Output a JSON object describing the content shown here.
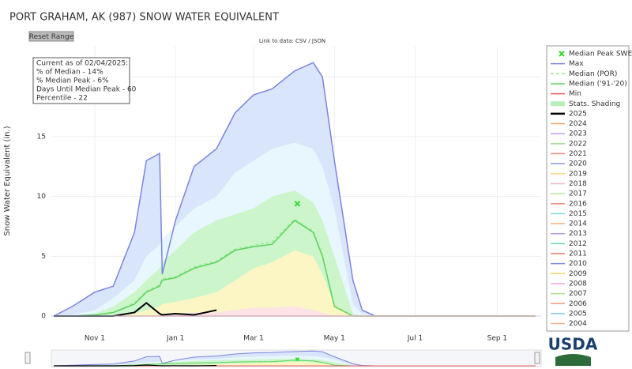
{
  "chart_data": {
    "type": "area",
    "title": "PORT GRAHAM, AK (987) SNOW WATER EQUIVALENT",
    "reset_button": "Reset Range",
    "data_link": "Link to data: CSV / JSON",
    "y_label": "Snow Water Equivalent (in.)",
    "info": [
      "Current as of 02/04/2025:",
      "% of Median - 14%",
      "% Median Peak - 6%",
      "Days Until Median Peak - 60",
      "Percentile - 22"
    ],
    "logo": "USDA",
    "grid": true,
    "x": [
      "Oct 1",
      "Oct 15",
      "Nov 1",
      "Nov 15",
      "Dec 1",
      "Dec 10",
      "Dec 20",
      "Dec 22",
      "Jan 1",
      "Jan 15",
      "Feb 1",
      "Feb 15",
      "Mar 1",
      "Mar 15",
      "Apr 1",
      "Apr 15",
      "Apr 22",
      "May 1",
      "May 15",
      "May 22",
      "Jun 1",
      "Jul 1",
      "Aug 1",
      "Sep 1",
      "Sep 30"
    ],
    "xlim": [
      "Oct 1",
      "Sep 30"
    ],
    "xticks": [
      "Nov 1",
      "Jan 1",
      "Mar 1",
      "May 1",
      "Jul 1",
      "Sep 1"
    ],
    "ylim": [
      0,
      22.6
    ],
    "yticks": [
      0,
      5,
      10,
      15,
      20
    ],
    "median_peak": {
      "name": "Median Peak SWE",
      "color": "#33dd33",
      "x": "Apr 3",
      "value": 9.4
    },
    "series": [
      {
        "name": "Max",
        "color": "#7d84e0",
        "values": [
          0,
          0.8,
          2,
          2.5,
          7,
          13,
          13.6,
          3.5,
          8,
          12.5,
          14,
          17,
          18.5,
          19,
          20.5,
          21.2,
          20,
          13,
          3,
          0.5,
          0,
          0,
          0,
          0,
          0
        ]
      },
      {
        "name": "Median (POR)",
        "color": "#9be89b",
        "dash": true,
        "values": [
          0,
          0,
          0.1,
          0.3,
          1.1,
          2.1,
          2.6,
          3.1,
          3.3,
          4.1,
          4.6,
          5.6,
          5.9,
          6.2,
          8.1,
          7.1,
          5.1,
          0.9,
          0,
          0,
          0,
          0,
          0,
          0,
          0
        ]
      },
      {
        "name": "Median ('91-'20)",
        "color": "#5ed35e",
        "values": [
          0,
          0,
          0.1,
          0.3,
          1,
          2,
          2.5,
          3,
          3.2,
          4,
          4.5,
          5.5,
          5.8,
          6,
          8,
          7,
          5,
          0.8,
          0,
          0,
          0,
          0,
          0,
          0,
          0
        ]
      },
      {
        "name": "Min",
        "color": "#f06060",
        "values": [
          0,
          0,
          0,
          0,
          0,
          0,
          0,
          0,
          0,
          0,
          0,
          0,
          0,
          0,
          0,
          0,
          0,
          0,
          0,
          0,
          0,
          0,
          0,
          0,
          0
        ]
      }
    ],
    "shading": {
      "name": "Stats. Shading",
      "color": "#b7f0b7",
      "bands": [
        {
          "color": "#d8e5fb",
          "values": [
            0,
            0.8,
            2,
            2.5,
            7,
            13,
            13.6,
            3.5,
            8,
            12.5,
            14,
            17,
            18.5,
            19,
            20.5,
            21.2,
            20,
            13,
            3,
            0.5,
            0,
            0,
            0,
            0,
            0
          ]
        },
        {
          "color": "#e8f6fd",
          "values": [
            0,
            0.1,
            0.5,
            1.5,
            3,
            5,
            6,
            6.5,
            7.5,
            9,
            10,
            12,
            13,
            14,
            14.5,
            14,
            12.5,
            9,
            1,
            0.2,
            0,
            0,
            0,
            0,
            0
          ]
        },
        {
          "color": "#ccf5cc",
          "values": [
            0,
            0,
            0.2,
            0.8,
            2,
            3,
            4,
            4.5,
            5.5,
            7,
            8,
            8.5,
            9,
            10,
            10.5,
            9.5,
            8,
            5,
            0.2,
            0,
            0,
            0,
            0,
            0,
            0
          ]
        },
        {
          "color": "#fbf6c4",
          "values": [
            0,
            0,
            0,
            0,
            0.2,
            0.5,
            0.8,
            1,
            1.2,
            1.5,
            2,
            3,
            4,
            4.5,
            5.5,
            5,
            3.5,
            1,
            0,
            0,
            0,
            0,
            0,
            0,
            0
          ]
        },
        {
          "color": "#fde2e6",
          "values": [
            0,
            0,
            0,
            0,
            0,
            0,
            0.1,
            0.1,
            0.2,
            0.3,
            0.3,
            0.5,
            0.7,
            0.7,
            0.8,
            0.5,
            0.3,
            0,
            0,
            0,
            0,
            0,
            0,
            0,
            0
          ]
        }
      ]
    },
    "current": {
      "name": "2025",
      "color": "#000000",
      "values": [
        0,
        0,
        0,
        0,
        0.3,
        1.1,
        0.2,
        0.1,
        0.2,
        0.1,
        0.5,
        null,
        null,
        null,
        null,
        null,
        null,
        null,
        null,
        null,
        null,
        null,
        null,
        null,
        null
      ]
    },
    "other_years": [
      {
        "name": "2024",
        "color": "#f6a76c"
      },
      {
        "name": "2023",
        "color": "#c3a3e6"
      },
      {
        "name": "2022",
        "color": "#9ad98a"
      },
      {
        "name": "2021",
        "color": "#f4887f"
      },
      {
        "name": "2020",
        "color": "#8b93e8"
      },
      {
        "name": "2019",
        "color": "#f7d684"
      },
      {
        "name": "2018",
        "color": "#f4b6c9"
      },
      {
        "name": "2017",
        "color": "#b5e89a"
      },
      {
        "name": "2016",
        "color": "#f78c7a"
      },
      {
        "name": "2015",
        "color": "#7fd6e6"
      },
      {
        "name": "2014",
        "color": "#f5b27a"
      },
      {
        "name": "2013",
        "color": "#b89ae0"
      },
      {
        "name": "2012",
        "color": "#6fd4b0"
      },
      {
        "name": "2011",
        "color": "#f07a6a"
      },
      {
        "name": "2010",
        "color": "#7e8de4"
      },
      {
        "name": "2009",
        "color": "#f2d36a"
      },
      {
        "name": "2008",
        "color": "#f4a6d8"
      },
      {
        "name": "2007",
        "color": "#a8e08a"
      },
      {
        "name": "2006",
        "color": "#f49a7c"
      },
      {
        "name": "2005",
        "color": "#80c8f0"
      },
      {
        "name": "2004",
        "color": "#f5b08a"
      }
    ]
  }
}
